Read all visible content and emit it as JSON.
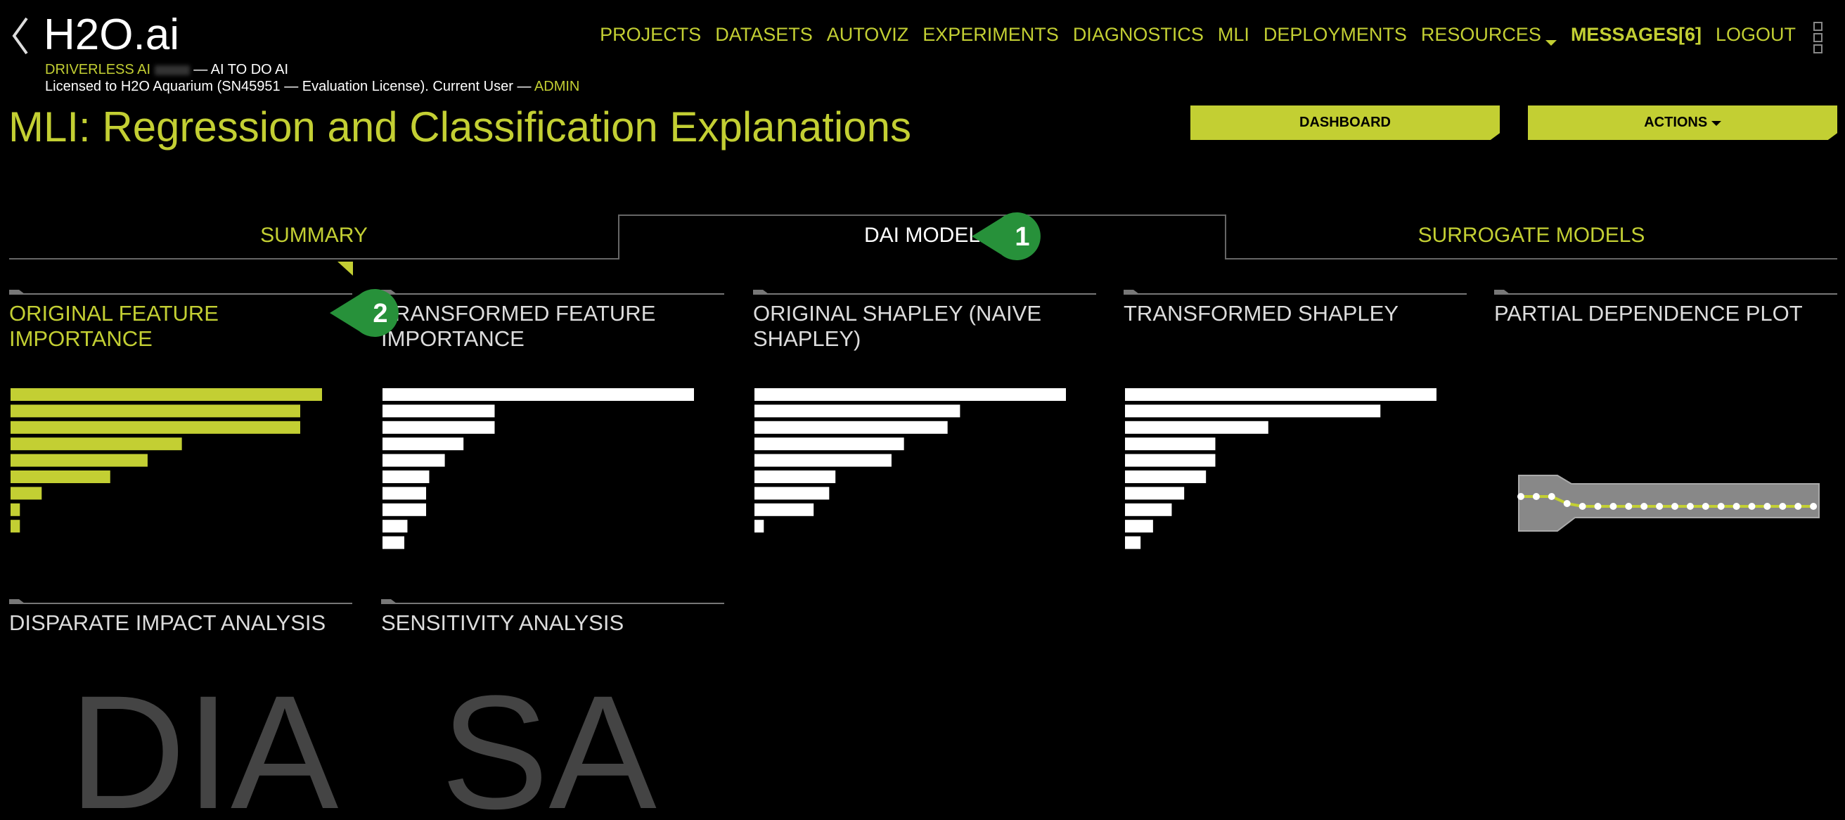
{
  "header": {
    "logo": "H2O.ai",
    "product": "DRIVERLESS AI",
    "tagline": "— AI TO DO AI",
    "license": "Licensed to H2O Aquarium (SN45951 — Evaluation License). Current User —",
    "user": "ADMIN"
  },
  "nav": [
    "PROJECTS",
    "DATASETS",
    "AUTOVIZ",
    "EXPERIMENTS",
    "DIAGNOSTICS",
    "MLI",
    "DEPLOYMENTS",
    "RESOURCES",
    "MESSAGES[6]",
    "LOGOUT"
  ],
  "title": "MLI: Regression and Classification Explanations",
  "buttons": [
    "DASHBOARD",
    "ACTIONS"
  ],
  "tabs": [
    "SUMMARY",
    "DAI MODEL",
    "SURROGATE MODELS"
  ],
  "callouts": [
    "1",
    "2"
  ],
  "tiles": [
    {
      "title": "ORIGINAL FEATURE IMPORTANCE",
      "bars": [
        100,
        93,
        93,
        55,
        44,
        32,
        10,
        3,
        3
      ]
    },
    {
      "title": "TRANSFORMED FEATURE IMPORTANCE",
      "bars": [
        100,
        36,
        36,
        26,
        20,
        15,
        14,
        14,
        8,
        7
      ]
    },
    {
      "title": "ORIGINAL SHAPLEY (NAIVE SHAPLEY)",
      "bars": [
        100,
        66,
        62,
        48,
        44,
        26,
        24,
        19,
        3
      ]
    },
    {
      "title": "TRANSFORMED SHAPLEY",
      "bars": [
        100,
        82,
        46,
        29,
        29,
        26,
        19,
        15,
        9,
        5
      ]
    },
    {
      "title": "PARTIAL DEPENDENCE PLOT"
    },
    {
      "title": "DISPARATE IMPACT ANALYSIS",
      "placeholder": "DIA"
    },
    {
      "title": "SENSITIVITY ANALYSIS",
      "placeholder": "SA"
    }
  ]
}
